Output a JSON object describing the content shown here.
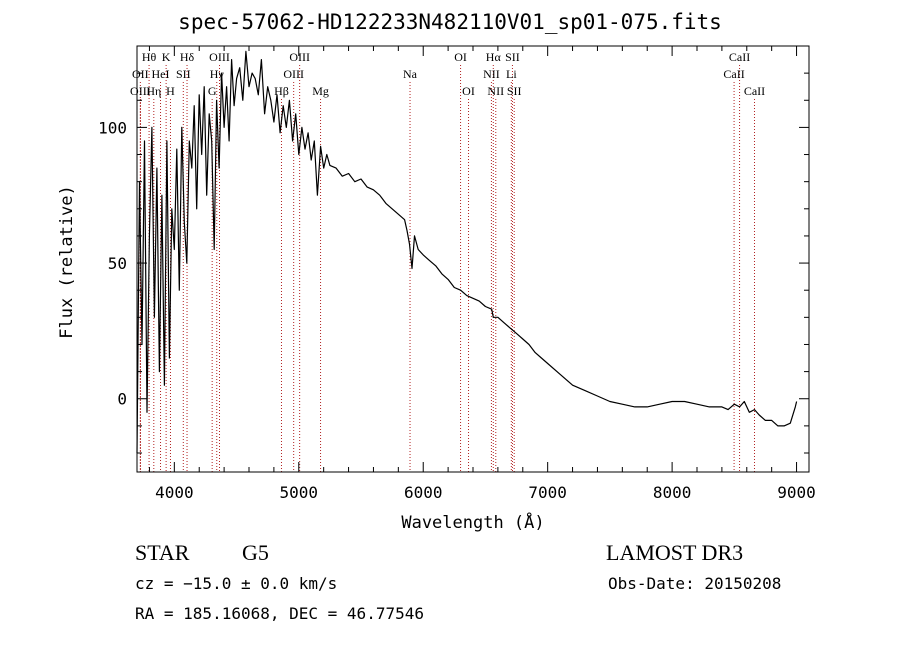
{
  "header": {
    "title": "spec-57062-HD122233N482110V01_sp01-075.fits"
  },
  "info": {
    "object_type": "STAR",
    "subclass": "G5",
    "survey": "LAMOST DR3",
    "cz": "cz = −15.0 ± 0.0 km/s",
    "obs_date": "Obs-Date: 20150208",
    "coords": "RA = 185.16068, DEC =  46.77546"
  },
  "colors": {
    "line_marker": "#b22222",
    "spectrum": "#000000",
    "axis": "#000000"
  },
  "chart_data": {
    "type": "line",
    "title": "spec-57062-HD122233N482110V01_sp01-075.fits",
    "xlabel": "Wavelength (Å)",
    "ylabel": "Flux (relative)",
    "xlim": [
      3700,
      9100
    ],
    "ylim": [
      -27,
      130
    ],
    "xticks": [
      4000,
      5000,
      6000,
      7000,
      8000,
      9000
    ],
    "yticks": [
      0,
      50,
      100
    ],
    "grid": false,
    "series": [
      {
        "name": "flux",
        "x": [
          3700,
          3720,
          3740,
          3760,
          3780,
          3800,
          3820,
          3840,
          3860,
          3880,
          3900,
          3920,
          3940,
          3960,
          3980,
          4000,
          4020,
          4040,
          4060,
          4080,
          4100,
          4120,
          4140,
          4160,
          4180,
          4200,
          4220,
          4240,
          4260,
          4280,
          4300,
          4320,
          4340,
          4360,
          4380,
          4400,
          4420,
          4440,
          4460,
          4480,
          4500,
          4525,
          4550,
          4575,
          4600,
          4625,
          4650,
          4675,
          4700,
          4725,
          4750,
          4775,
          4800,
          4825,
          4850,
          4875,
          4900,
          4925,
          4950,
          4975,
          5000,
          5025,
          5050,
          5075,
          5100,
          5125,
          5150,
          5175,
          5200,
          5225,
          5250,
          5300,
          5350,
          5400,
          5450,
          5500,
          5550,
          5600,
          5650,
          5700,
          5750,
          5800,
          5850,
          5870,
          5890,
          5910,
          5930,
          5960,
          6000,
          6050,
          6100,
          6150,
          6200,
          6250,
          6300,
          6350,
          6400,
          6450,
          6500,
          6550,
          6563,
          6600,
          6650,
          6700,
          6750,
          6800,
          6850,
          6900,
          6950,
          7000,
          7100,
          7200,
          7300,
          7400,
          7500,
          7600,
          7700,
          7800,
          7900,
          8000,
          8100,
          8200,
          8300,
          8400,
          8450,
          8500,
          8542,
          8580,
          8620,
          8662,
          8700,
          8750,
          8800,
          8850,
          8900,
          8950,
          8990,
          9000
        ],
        "values": [
          -20,
          80,
          20,
          95,
          -5,
          60,
          100,
          30,
          85,
          10,
          75,
          5,
          95,
          15,
          70,
          55,
          92,
          40,
          100,
          65,
          50,
          95,
          85,
          108,
          70,
          112,
          90,
          115,
          75,
          105,
          95,
          55,
          110,
          85,
          120,
          100,
          115,
          95,
          125,
          108,
          118,
          122,
          110,
          128,
          115,
          120,
          118,
          112,
          125,
          105,
          115,
          110,
          102,
          112,
          98,
          108,
          100,
          110,
          95,
          105,
          90,
          100,
          92,
          98,
          88,
          95,
          75,
          93,
          85,
          90,
          86,
          85,
          82,
          83,
          80,
          81,
          78,
          77,
          75,
          72,
          70,
          68,
          66,
          62,
          57,
          48,
          60,
          55,
          53,
          51,
          49,
          46,
          44,
          41,
          40,
          38,
          37,
          36,
          34,
          33,
          30,
          30,
          28,
          26,
          24,
          22,
          20,
          17,
          15,
          13,
          9,
          5,
          3,
          1,
          -1,
          -2,
          -3,
          -3,
          -2,
          -1,
          -1,
          -2,
          -3,
          -3,
          -4,
          -2,
          -3,
          -1,
          -5,
          -4,
          -6,
          -8,
          -8,
          -10,
          -10,
          -9,
          -3,
          -1
        ]
      }
    ],
    "lines": [
      {
        "label": "Hθ",
        "wavelength": 3797,
        "row": 1
      },
      {
        "label": "OII",
        "wavelength": 3727,
        "row": 2
      },
      {
        "label": "OIII",
        "wavelength": 3727,
        "row": 3
      },
      {
        "label": "HeI",
        "wavelength": 3889,
        "row": 2
      },
      {
        "label": "Hη",
        "wavelength": 3835,
        "row": 3
      },
      {
        "label": "K",
        "wavelength": 3934,
        "row": 1
      },
      {
        "label": "SII",
        "wavelength": 4072,
        "row": 2
      },
      {
        "label": "H",
        "wavelength": 3969,
        "row": 3
      },
      {
        "label": "Hδ",
        "wavelength": 4102,
        "row": 1
      },
      {
        "label": "OIII",
        "wavelength": 4363,
        "row": 1
      },
      {
        "label": "Hγ",
        "wavelength": 4341,
        "row": 2
      },
      {
        "label": "G",
        "wavelength": 4304,
        "row": 3
      },
      {
        "label": "Hβ",
        "wavelength": 4861,
        "row": 3
      },
      {
        "label": "OIII",
        "wavelength": 5007,
        "row": 1
      },
      {
        "label": "OIII",
        "wavelength": 4959,
        "row": 2
      },
      {
        "label": "Mg",
        "wavelength": 5175,
        "row": 3
      },
      {
        "label": "Na",
        "wavelength": 5894,
        "row": 2
      },
      {
        "label": "OI",
        "wavelength": 6300,
        "row": 1
      },
      {
        "label": "OI",
        "wavelength": 6364,
        "row": 3
      },
      {
        "label": "Hα",
        "wavelength": 6563,
        "row": 1
      },
      {
        "label": "NII",
        "wavelength": 6548,
        "row": 2
      },
      {
        "label": "NII",
        "wavelength": 6583,
        "row": 3
      },
      {
        "label": "SII",
        "wavelength": 6717,
        "row": 1
      },
      {
        "label": "Li",
        "wavelength": 6708,
        "row": 2
      },
      {
        "label": "SII",
        "wavelength": 6731,
        "row": 3
      },
      {
        "label": "CaII",
        "wavelength": 8542,
        "row": 1
      },
      {
        "label": "CaII",
        "wavelength": 8498,
        "row": 2
      },
      {
        "label": "CaII",
        "wavelength": 8662,
        "row": 3
      }
    ]
  }
}
